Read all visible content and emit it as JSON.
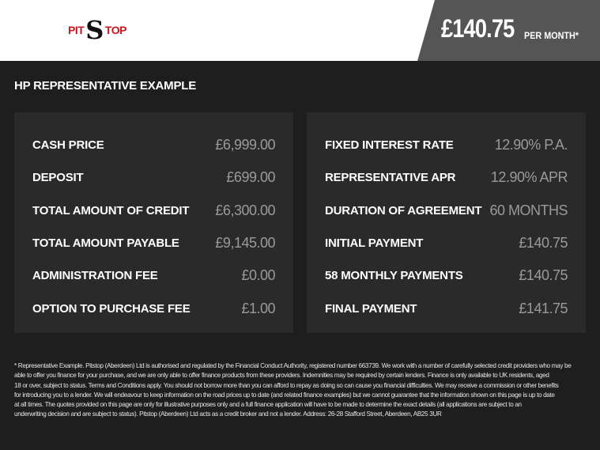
{
  "header": {
    "logo_text": "PIT STOP",
    "price": "£140.75",
    "per_month": "PER MONTH*"
  },
  "title": "HP REPRESENTATIVE EXAMPLE",
  "left": [
    {
      "label": "CASH PRICE",
      "value": "£6,999.00"
    },
    {
      "label": "DEPOSIT",
      "value": "£699.00"
    },
    {
      "label": "TOTAL AMOUNT OF CREDIT",
      "value": "£6,300.00"
    },
    {
      "label": "TOTAL AMOUNT PAYABLE",
      "value": "£9,145.00"
    },
    {
      "label": "ADMINISTRATION FEE",
      "value": "£0.00"
    },
    {
      "label": "OPTION TO PURCHASE FEE",
      "value": "£1.00"
    }
  ],
  "right": [
    {
      "label": "FIXED INTEREST RATE",
      "value": "12.90% P.A."
    },
    {
      "label": "REPRESENTATIVE APR",
      "value": "12.90% APR"
    },
    {
      "label": "DURATION OF AGREEMENT",
      "value": "60 MONTHS"
    },
    {
      "label": "INITIAL PAYMENT",
      "value": "£140.75"
    },
    {
      "label": "58 MONTHLY PAYMENTS",
      "value": "£140.75"
    },
    {
      "label": "FINAL PAYMENT",
      "value": "£141.75"
    }
  ],
  "disclaimer": [
    "* Representative Example. Pitstop (Aberdeen) Ltd is authorised and regulated by the Financial Conduct Authority, registered number 663739. We work with a number of carefully selected credit providers who may be",
    "able to offer you finance for your purchase, and we are only able to offer finance products from these providers. Indemnities may be required by certain lenders. Finance is only available to UK residents, aged",
    "18 or over, subject to status. Terms and Conditions apply. You should not borrow more than you can afford to repay as doing so can cause you financial difficulties. We may receive a commission or other benefits",
    "for introducing you to a lender. We will endeavour to keep information on the road prices up to date (and related finance examples) but we cannot guarantee that the information shown on this page is up to date",
    "at all times. The quotes provided on this page are only for illustrative purposes only and a full finance application will have to be made to determine the exact details (all applications are subject to an",
    "underwriting decision and are subject to status). Pitstop (Aberdeen) Ltd acts as a credit broker and not a lender. Address: 26-28 Stafford Street, Aberdeen, AB25 3UR"
  ]
}
